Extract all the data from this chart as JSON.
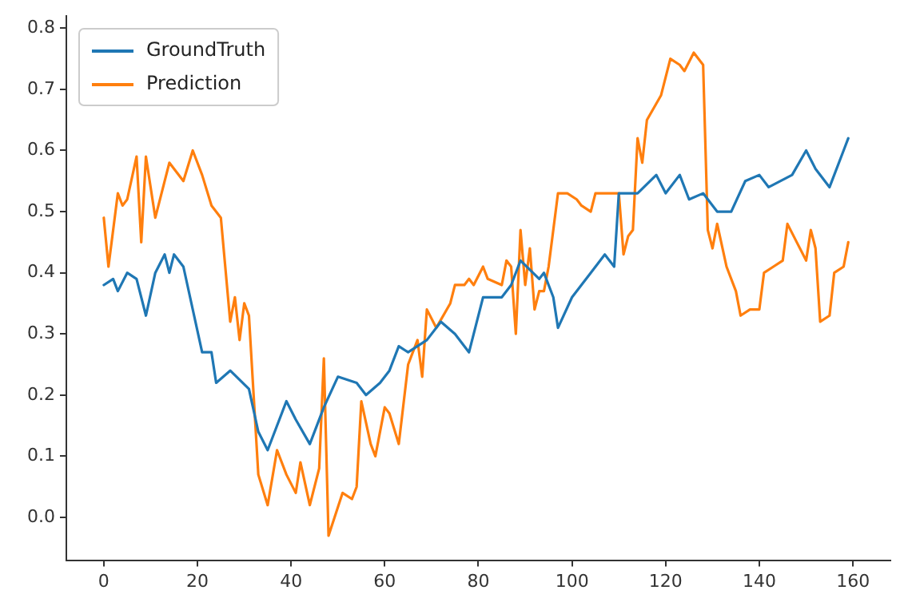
{
  "chart_data": {
    "type": "line",
    "xlim": [
      -8,
      168
    ],
    "ylim": [
      -0.07,
      0.82
    ],
    "xticks": [
      0,
      20,
      40,
      60,
      80,
      100,
      120,
      140,
      160
    ],
    "yticks": [
      {
        "value": 0,
        "label": "0.0"
      },
      0.1,
      0.2,
      0.3,
      0.4,
      0.5,
      0.6,
      0.7,
      0.8
    ],
    "grid": false,
    "legend": "top left",
    "marker": "none",
    "line_style": "solid",
    "series": [
      {
        "name": "GroundTruth",
        "color": "#1f77b4",
        "x": [
          0,
          2,
          3,
          5,
          7,
          9,
          11,
          13,
          14,
          15,
          17,
          21,
          23,
          24,
          27,
          31,
          33,
          35,
          39,
          41,
          44,
          47,
          50,
          54,
          56,
          59,
          61,
          63,
          65,
          69,
          72,
          75,
          78,
          81,
          85,
          87,
          89,
          93,
          94,
          96,
          97,
          100,
          102,
          104,
          107,
          109,
          110,
          114,
          118,
          120,
          123,
          125,
          128,
          131,
          134,
          137,
          140,
          142,
          147,
          150,
          152,
          155,
          158,
          159
        ],
        "values": [
          0.38,
          0.39,
          0.37,
          0.4,
          0.39,
          0.33,
          0.4,
          0.43,
          0.4,
          0.43,
          0.41,
          0.27,
          0.27,
          0.22,
          0.24,
          0.21,
          0.14,
          0.11,
          0.19,
          0.16,
          0.12,
          0.18,
          0.23,
          0.22,
          0.2,
          0.22,
          0.24,
          0.28,
          0.27,
          0.29,
          0.32,
          0.3,
          0.27,
          0.36,
          0.36,
          0.38,
          0.42,
          0.39,
          0.4,
          0.36,
          0.31,
          0.36,
          0.38,
          0.4,
          0.43,
          0.41,
          0.53,
          0.53,
          0.56,
          0.53,
          0.56,
          0.52,
          0.53,
          0.5,
          0.5,
          0.55,
          0.56,
          0.54,
          0.56,
          0.6,
          0.57,
          0.54,
          0.6,
          0.62
        ]
      },
      {
        "name": "Prediction",
        "color": "#ff7f0e",
        "x": [
          0,
          1,
          3,
          4,
          5,
          7,
          8,
          9,
          11,
          14,
          17,
          19,
          21,
          23,
          25,
          27,
          28,
          29,
          30,
          31,
          33,
          35,
          37,
          39,
          41,
          42,
          44,
          46,
          47,
          48,
          51,
          53,
          54,
          55,
          57,
          58,
          60,
          61,
          63,
          65,
          67,
          68,
          69,
          71,
          74,
          75,
          77,
          78,
          79,
          81,
          82,
          85,
          86,
          87,
          88,
          89,
          90,
          91,
          92,
          93,
          94,
          95,
          97,
          99,
          101,
          102,
          104,
          105,
          107,
          110,
          111,
          112,
          113,
          114,
          115,
          116,
          119,
          121,
          123,
          124,
          126,
          128,
          129,
          130,
          131,
          133,
          135,
          136,
          138,
          140,
          141,
          143,
          145,
          146,
          148,
          150,
          151,
          152,
          153,
          155,
          156,
          158,
          159
        ],
        "values": [
          0.49,
          0.41,
          0.53,
          0.51,
          0.52,
          0.59,
          0.45,
          0.59,
          0.49,
          0.58,
          0.55,
          0.6,
          0.56,
          0.51,
          0.49,
          0.32,
          0.36,
          0.29,
          0.35,
          0.33,
          0.07,
          0.02,
          0.11,
          0.07,
          0.04,
          0.09,
          0.02,
          0.08,
          0.26,
          -0.03,
          0.04,
          0.03,
          0.05,
          0.19,
          0.12,
          0.1,
          0.18,
          0.17,
          0.12,
          0.25,
          0.29,
          0.23,
          0.34,
          0.31,
          0.35,
          0.38,
          0.38,
          0.39,
          0.38,
          0.41,
          0.39,
          0.38,
          0.42,
          0.41,
          0.3,
          0.47,
          0.38,
          0.44,
          0.34,
          0.37,
          0.37,
          0.41,
          0.53,
          0.53,
          0.52,
          0.51,
          0.5,
          0.53,
          0.53,
          0.53,
          0.43,
          0.46,
          0.47,
          0.62,
          0.58,
          0.65,
          0.69,
          0.75,
          0.74,
          0.73,
          0.76,
          0.74,
          0.47,
          0.44,
          0.48,
          0.41,
          0.37,
          0.33,
          0.34,
          0.34,
          0.4,
          0.41,
          0.42,
          0.48,
          0.45,
          0.42,
          0.47,
          0.44,
          0.32,
          0.33,
          0.4,
          0.41,
          0.45
        ]
      }
    ]
  }
}
